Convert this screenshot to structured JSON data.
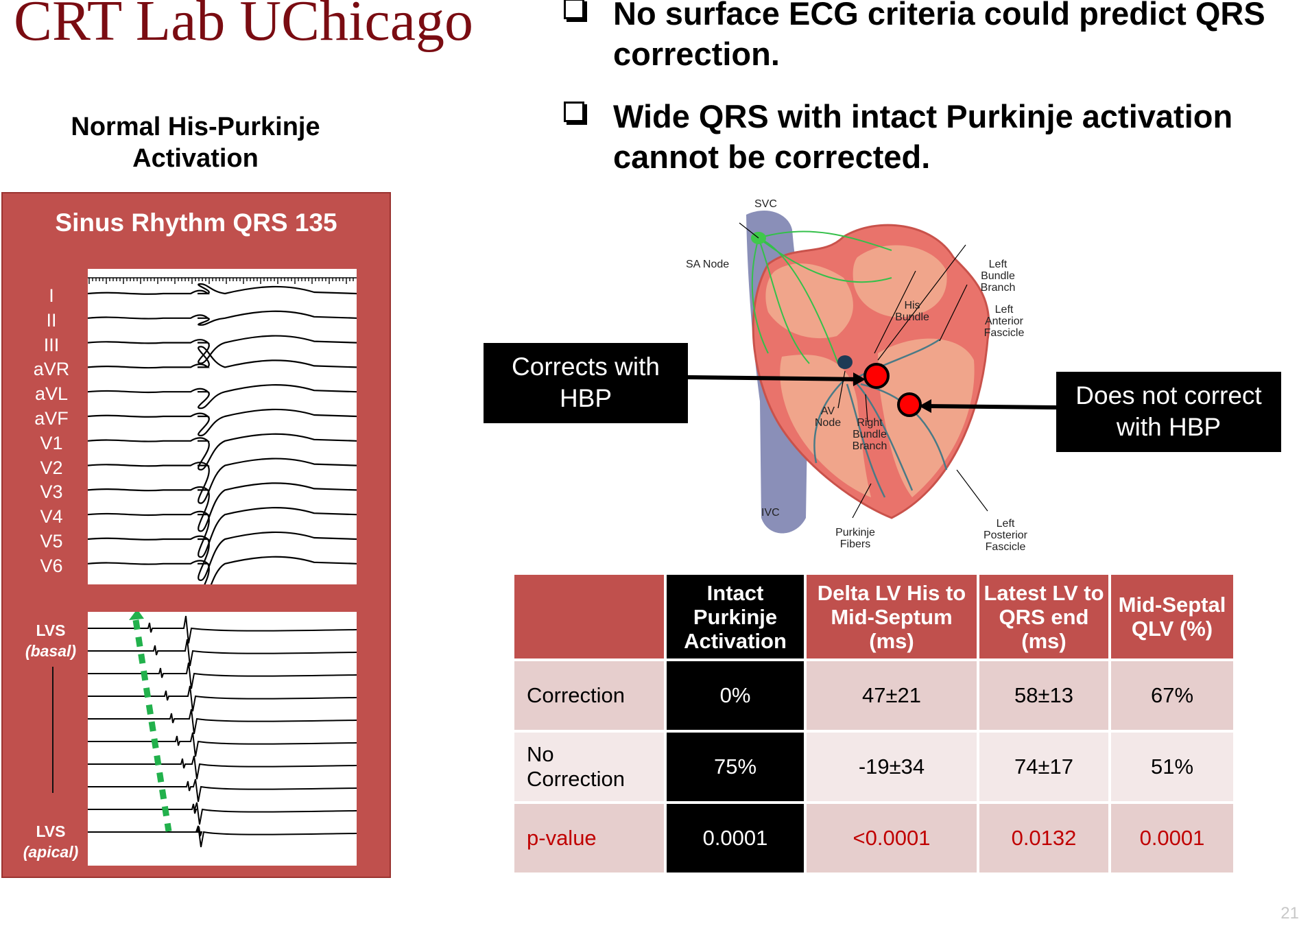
{
  "title": "CRT Lab UChicago",
  "bullets": [
    "No surface ECG criteria could predict QRS correction.",
    "Wide QRS with intact Purkinje activation cannot be corrected."
  ],
  "subtitle": "Normal His-Purkinje Activation",
  "ecg": {
    "title": "Sinus Rhythm QRS 135",
    "leads": [
      "I",
      "II",
      "III",
      "aVR",
      "aVL",
      "aVF",
      "V1",
      "V2",
      "V3",
      "V4",
      "V5",
      "V6"
    ],
    "lvs_basal": "LVS",
    "lvs_basal_sub": "(basal)",
    "lvs_apical": "LVS",
    "lvs_apical_sub": "(apical)",
    "arrow_color": "#22b14c"
  },
  "heart": {
    "labels": {
      "svc": "SVC",
      "sa_node": "SA Node",
      "left_bundle_branch": "Left Bundle Branch",
      "his_bundle": "His Bundle",
      "left_anterior_fascicle": "Left Anterior Fascicle",
      "av_node": "AV Node",
      "right_bundle_branch": "Right Bundle Branch",
      "ivc": "IVC",
      "purkinje_fibers": "Purkinje Fibers",
      "left_posterior_fascicle": "Left Posterior Fascicle"
    },
    "marker_color": "#ff0000"
  },
  "callouts": {
    "corrects": "Corrects with HBP",
    "does_not_correct": "Does not correct with HBP"
  },
  "table": {
    "headers": [
      "",
      "Intact Purkinje Activation",
      "Delta LV His to Mid-Septum (ms)",
      "Latest LV to QRS end  (ms)",
      "Mid-Septal QLV (%)"
    ],
    "rows": [
      [
        "Correction",
        "0%",
        "47±21",
        "58±13",
        "67%"
      ],
      [
        "No Correction",
        "75%",
        "-19±34",
        "74±17",
        "51%"
      ],
      [
        "p-value",
        "0.0001",
        "<0.0001",
        "0.0132",
        "0.0001"
      ]
    ],
    "header_color": "#c0504d",
    "pvalue_color": "#c00000"
  },
  "page_number": "21"
}
